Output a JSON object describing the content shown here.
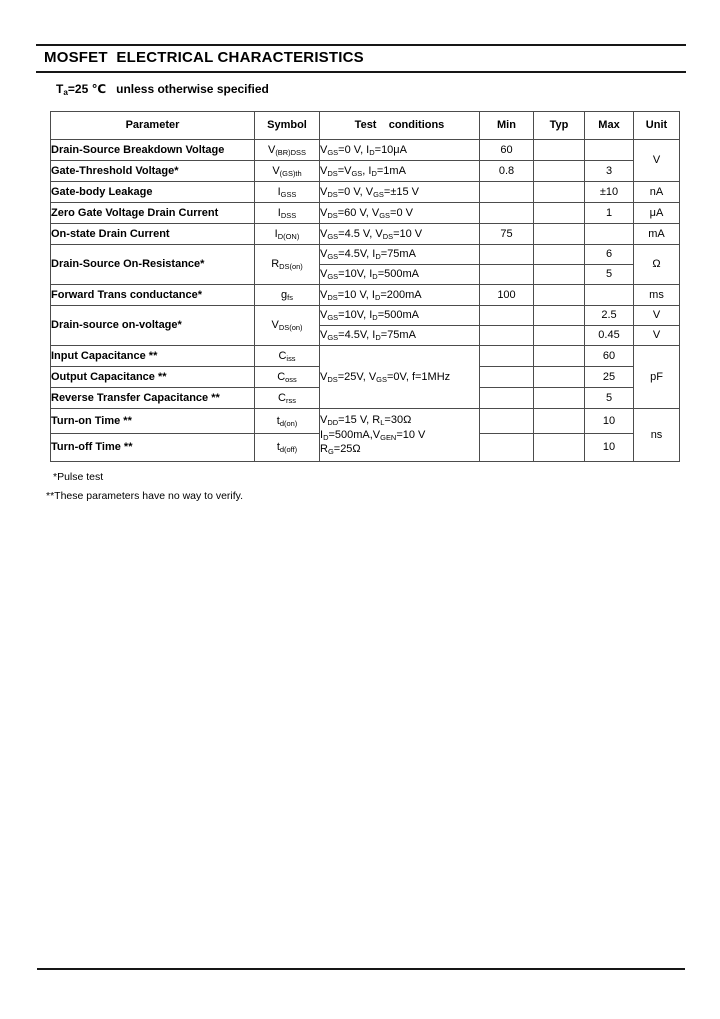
{
  "header": {
    "title": "MOSFET  ELECTRICAL CHARACTERISTICS",
    "subtitle": "T~a~=25 ℃   unless otherwise specified"
  },
  "table": {
    "headers": [
      "Parameter",
      "Symbol",
      "Test    conditions",
      "Min",
      "Typ",
      "Max",
      "Unit"
    ],
    "rows": {
      "breakdown_voltage": {
        "param": "Drain-Source Breakdown Voltage",
        "symbol": "V~(BR)DSS~",
        "cond": "V~GS~=0 V, I~D~=10μA",
        "min": "60",
        "typ": "",
        "max": "",
        "unit": "V"
      },
      "gate_threshold": {
        "param": "Gate-Threshold Voltage*",
        "symbol": "V~(GS)th~",
        "cond": "V~DS~=V~GS~, I~D~=1mA",
        "min": "0.8",
        "typ": "",
        "max": "3"
      },
      "gate_body_leakage": {
        "param": "Gate-body Leakage",
        "symbol": "I~GSS~",
        "cond": "V~DS~=0 V, V~GS~=±15 V",
        "min": "",
        "typ": "",
        "max": "±10",
        "unit": "nA"
      },
      "zero_gate_drain_current": {
        "param": "Zero Gate Voltage Drain Current",
        "symbol": "I~DSS~",
        "cond": "V~DS~=60 V, V~GS~=0 V",
        "min": "",
        "typ": "",
        "max": "1",
        "unit": "μA"
      },
      "on_state_drain_current": {
        "param": "On-state Drain Current",
        "symbol": "I~D(ON)~",
        "cond": "V~GS~=4.5 V, V~DS~=10 V",
        "min": "75",
        "typ": "",
        "max": "",
        "unit": "mA"
      },
      "on_resistance": {
        "param": "Drain-Source On-Resistance*",
        "symbol": "R~DS(on)~",
        "unit": "Ω",
        "sub": [
          {
            "cond": "V~GS~=4.5V, I~D~=75mA",
            "min": "",
            "typ": "",
            "max": "6"
          },
          {
            "cond": "V~GS~=10V, I~D~=500mA",
            "min": "",
            "typ": "",
            "max": "5"
          }
        ]
      },
      "forward_transconductance": {
        "param": "Forward Trans conductance*",
        "symbol": "g~fs~",
        "cond": "V~DS~=10 V, I~D~=200mA",
        "min": "100",
        "typ": "",
        "max": "",
        "unit": "ms"
      },
      "on_voltage": {
        "param": "Drain-source on-voltage*",
        "symbol": "V~DS(on)~",
        "sub": [
          {
            "cond": "V~GS~=10V, I~D~=500mA",
            "min": "",
            "typ": "",
            "max": "2.5",
            "unit": "V"
          },
          {
            "cond": "V~GS~=4.5V, I~D~=75mA",
            "min": "",
            "typ": "",
            "max": "0.45",
            "unit": "V"
          }
        ]
      },
      "capacitance": {
        "cond": "V~DS~=25V, V~GS~=0V, f=1MHz",
        "unit": "pF",
        "sub": [
          {
            "param": "Input Capacitance **",
            "symbol": "C~iss~",
            "min": "",
            "typ": "",
            "max": "60"
          },
          {
            "param": "Output Capacitance **",
            "symbol": "C~oss~",
            "min": "",
            "typ": "",
            "max": "25"
          },
          {
            "param": "Reverse Transfer Capacitance **",
            "symbol": "C~rss~",
            "min": "",
            "typ": "",
            "max": "5"
          }
        ]
      },
      "switching": {
        "cond_lines": [
          "V~DD~=15 V, R~L~=30Ω",
          "I~D~=500mA,V~GEN~=10 V",
          "R~G~=25Ω"
        ],
        "unit": "ns",
        "sub": [
          {
            "param": "Turn-on Time **",
            "symbol": "t~d(on)~",
            "min": "",
            "typ": "",
            "max": "10"
          },
          {
            "param": "Turn-off Time **",
            "symbol": "t~d(off)~",
            "min": "",
            "typ": "",
            "max": "10"
          }
        ]
      }
    }
  },
  "notes": [
    "*Pulse test",
    "**These parameters have no way to verify."
  ]
}
